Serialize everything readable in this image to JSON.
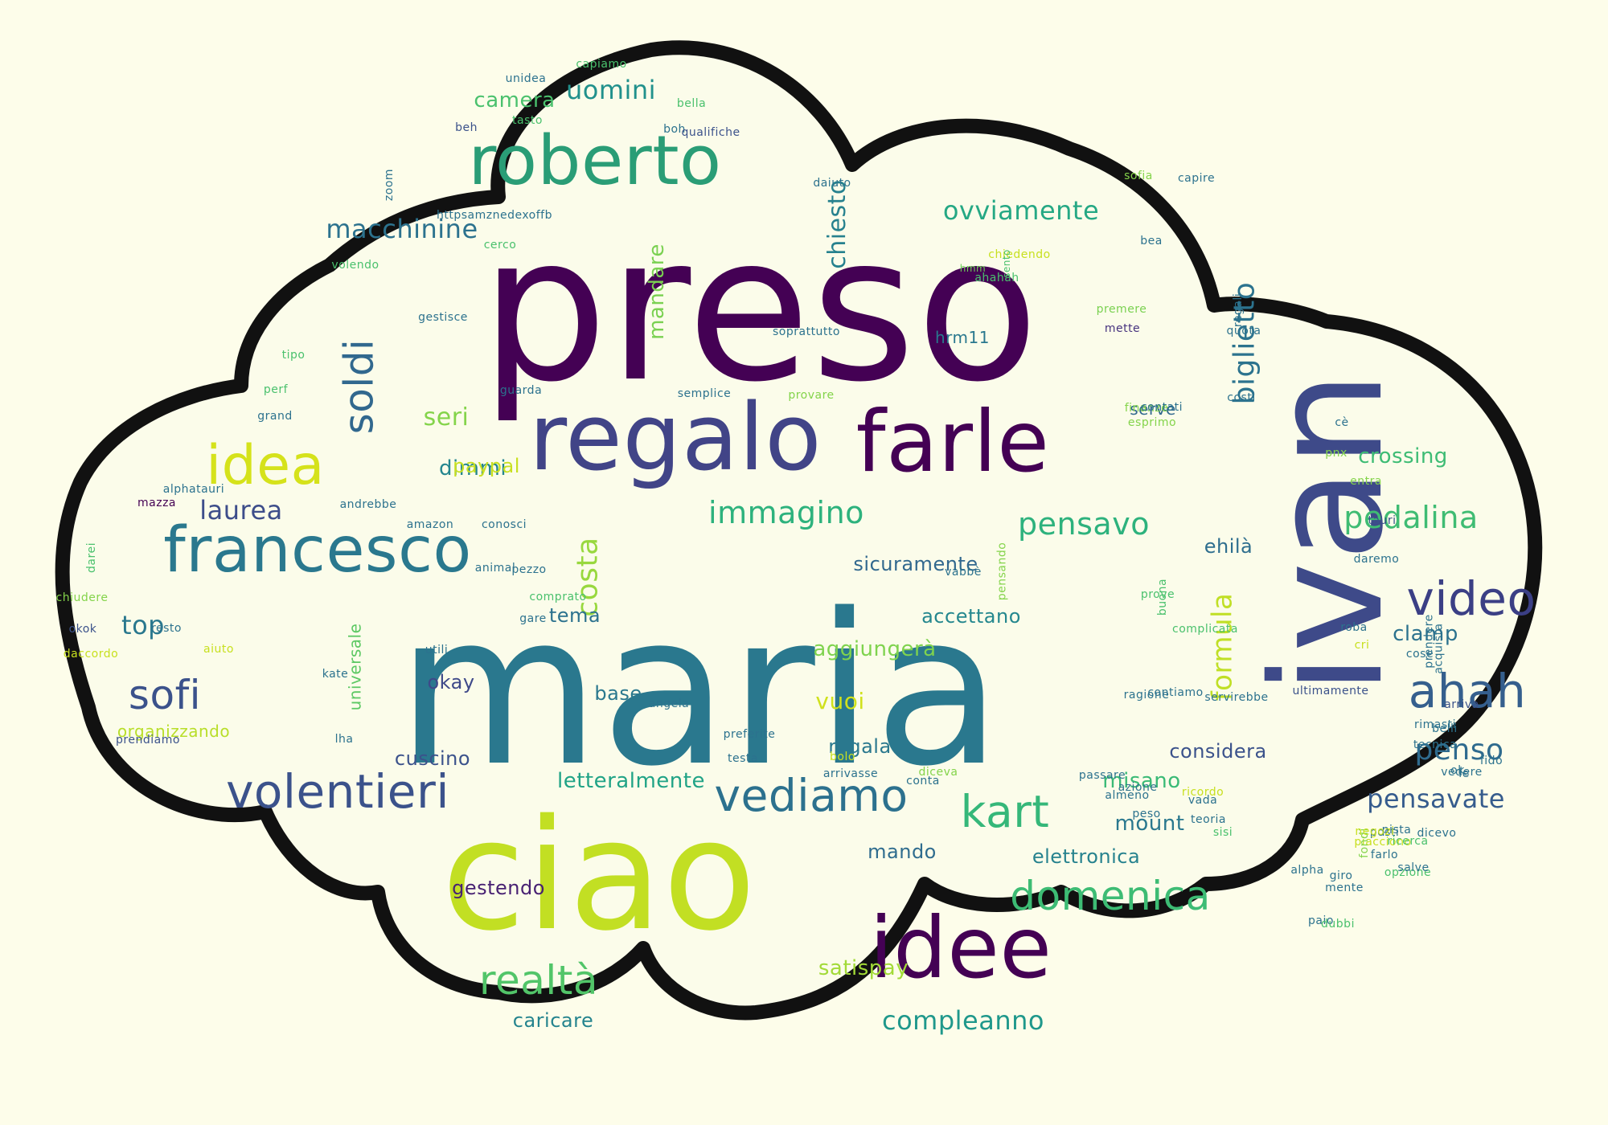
{
  "colors": {
    "background": "#fdfdea",
    "outline": "#111111",
    "cloud_fill": "#fbfcea",
    "palette": [
      "#440154",
      "#3b528b",
      "#21918c",
      "#5ec962",
      "#c7e020"
    ]
  },
  "words": [
    {
      "t": "preso",
      "c": "#440154",
      "v": false
    },
    {
      "t": "maria",
      "c": "#2a788e",
      "v": false
    },
    {
      "t": "ciao",
      "c": "#c2df23",
      "v": false
    },
    {
      "t": "ivan",
      "c": "#3e4a89",
      "v": true
    },
    {
      "t": "regalo",
      "c": "#414487",
      "v": false
    },
    {
      "t": "farle",
      "c": "#440154",
      "v": false
    },
    {
      "t": "idee",
      "c": "#440154",
      "v": false
    },
    {
      "t": "roberto",
      "c": "#2a9d76",
      "v": false
    },
    {
      "t": "francesco",
      "c": "#2a788e",
      "v": false
    },
    {
      "t": "idea",
      "c": "#d5e21a",
      "v": false
    },
    {
      "t": "video",
      "c": "#3b3f85",
      "v": false
    },
    {
      "t": "ahah",
      "c": "#355f8d",
      "v": false
    },
    {
      "t": "volentieri",
      "c": "#3b528b",
      "v": false
    },
    {
      "t": "vediamo",
      "c": "#2c718e",
      "v": false
    },
    {
      "t": "kart",
      "c": "#35b779",
      "v": false
    },
    {
      "t": "realtà",
      "c": "#52c569",
      "v": false
    },
    {
      "t": "domenica",
      "c": "#3dbc74",
      "v": false
    },
    {
      "t": "sofi",
      "c": "#3b528b",
      "v": false
    },
    {
      "t": "soldi",
      "c": "#31688e",
      "v": true
    },
    {
      "t": "ovviamente",
      "c": "#25a884",
      "v": false
    },
    {
      "t": "macchinine",
      "c": "#2c728e",
      "v": false
    },
    {
      "t": "uomini",
      "c": "#21918c",
      "v": false
    },
    {
      "t": "immagino",
      "c": "#2db27d",
      "v": false
    },
    {
      "t": "pensavo",
      "c": "#2db27d",
      "v": false
    },
    {
      "t": "pedalina",
      "c": "#3fbc73",
      "v": false
    },
    {
      "t": "biglietto",
      "c": "#2c738e",
      "v": true
    },
    {
      "t": "costa",
      "c": "#98d83e",
      "v": true
    },
    {
      "t": "formula",
      "c": "#c0df25",
      "v": true
    },
    {
      "t": "penso",
      "c": "#2f6b8e",
      "v": false
    },
    {
      "t": "misano",
      "c": "#3aba76",
      "v": false
    },
    {
      "t": "compleanno",
      "c": "#1f988b",
      "v": false
    },
    {
      "t": "laurea",
      "c": "#3d4d8a",
      "v": false
    },
    {
      "t": "top",
      "c": "#2a788e",
      "v": false
    },
    {
      "t": "seri",
      "c": "#84d44b",
      "v": false
    },
    {
      "t": "dimmi",
      "c": "#24868e",
      "v": false
    },
    {
      "t": "camera",
      "c": "#4ac16d",
      "v": false
    },
    {
      "t": "chiesto",
      "c": "#26818e",
      "v": true
    },
    {
      "t": "mandare",
      "c": "#7ad151",
      "v": true
    },
    {
      "t": "sicuramente",
      "c": "#31688e",
      "v": false
    },
    {
      "t": "ehilà",
      "c": "#2e6e8e",
      "v": false
    },
    {
      "t": "crossing",
      "c": "#3dbc74",
      "v": false
    },
    {
      "t": "clamp",
      "c": "#2c728e",
      "v": false
    },
    {
      "t": "pensavate",
      "c": "#365c8d",
      "v": false
    },
    {
      "t": "vuoi",
      "c": "#d0e11c",
      "v": false
    },
    {
      "t": "aggiungerà",
      "c": "#7fd34e",
      "v": false
    },
    {
      "t": "accettano",
      "c": "#24878e",
      "v": false
    },
    {
      "t": "regalato",
      "c": "#2a788e",
      "v": false
    },
    {
      "t": "considera",
      "c": "#3b528b",
      "v": false
    },
    {
      "t": "mount",
      "c": "#2a788e",
      "v": false
    },
    {
      "t": "elettronica",
      "c": "#26828e",
      "v": false
    },
    {
      "t": "mando",
      "c": "#2f6c8e",
      "v": false
    },
    {
      "t": "letteralmente",
      "c": "#20a386",
      "v": false
    },
    {
      "t": "gestendo",
      "c": "#482173",
      "v": false
    },
    {
      "t": "caricare",
      "c": "#25848e",
      "v": false
    },
    {
      "t": "satispay",
      "c": "#a2da37",
      "v": false
    },
    {
      "t": "universale",
      "c": "#5cc863",
      "v": true
    },
    {
      "t": "organizzando",
      "c": "#b8de29",
      "v": false
    },
    {
      "t": "cuscino",
      "c": "#3b528b",
      "v": false
    },
    {
      "t": "okay",
      "c": "#3e4989",
      "v": false
    },
    {
      "t": "base",
      "c": "#2a788e",
      "v": false
    },
    {
      "t": "tema",
      "c": "#2c728e",
      "v": false
    },
    {
      "t": "paypal",
      "c": "#c8e020",
      "v": false
    },
    {
      "t": "costi",
      "c": "#2c728e",
      "v": false
    },
    {
      "t": "serve",
      "c": "#31688e",
      "v": false
    },
    {
      "t": "hrm11",
      "c": "#2a788e",
      "v": false
    },
    {
      "t": "gestisce",
      "c": "#2c728e",
      "v": false
    },
    {
      "t": "soprattutto",
      "c": "#2c728e",
      "v": false
    },
    {
      "t": "premere",
      "c": "#7ad151",
      "v": false
    },
    {
      "t": "mette",
      "c": "#46327e",
      "v": false
    },
    {
      "t": "quota",
      "c": "#2c728e",
      "v": false
    },
    {
      "t": "regali",
      "c": "#2c728e",
      "v": true
    },
    {
      "t": "ahahah",
      "c": "#4ac16d",
      "v": false
    },
    {
      "t": "chiedendo",
      "c": "#c8e020",
      "v": false
    },
    {
      "t": "hmm",
      "c": "#6ece58",
      "v": false
    },
    {
      "t": "sento",
      "c": "#4ac16d",
      "v": true
    },
    {
      "t": "bea",
      "c": "#2c728e",
      "v": false
    },
    {
      "t": "capire",
      "c": "#2c728e",
      "v": false
    },
    {
      "t": "sofia",
      "c": "#84d44b",
      "v": false
    },
    {
      "t": "daiuto",
      "c": "#2c728e",
      "v": false
    },
    {
      "t": "cerco",
      "c": "#4ac16d",
      "v": false
    },
    {
      "t": "volendo",
      "c": "#4ac16d",
      "v": false
    },
    {
      "t": "zoom",
      "c": "#2c728e",
      "v": true
    },
    {
      "t": "httpsamznedexoffb",
      "c": "#2c728e",
      "v": false
    },
    {
      "t": "beh",
      "c": "#3b528b",
      "v": false
    },
    {
      "t": "tasto",
      "c": "#4ac16d",
      "v": false
    },
    {
      "t": "boh",
      "c": "#2c728e",
      "v": false
    },
    {
      "t": "qualifiche",
      "c": "#3b528b",
      "v": false
    },
    {
      "t": "bella",
      "c": "#4ac16d",
      "v": false
    },
    {
      "t": "unidea",
      "c": "#2c728e",
      "v": false
    },
    {
      "t": "capiamo",
      "c": "#4ac16d",
      "v": false
    },
    {
      "t": "tipo",
      "c": "#4ac16d",
      "v": false
    },
    {
      "t": "perf",
      "c": "#4ac16d",
      "v": false
    },
    {
      "t": "grand",
      "c": "#2c728e",
      "v": false
    },
    {
      "t": "guarda",
      "c": "#2c728e",
      "v": false
    },
    {
      "t": "semplice",
      "c": "#2c728e",
      "v": false
    },
    {
      "t": "provare",
      "c": "#84d44b",
      "v": false
    },
    {
      "t": "finanze",
      "c": "#84d44b",
      "v": false
    },
    {
      "t": "contati",
      "c": "#2c728e",
      "v": false
    },
    {
      "t": "esprimo",
      "c": "#84d44b",
      "v": false
    },
    {
      "t": "cè",
      "c": "#2c728e",
      "v": false
    },
    {
      "t": "pnx",
      "c": "#84d44b",
      "v": false
    },
    {
      "t": "entra",
      "c": "#84d44b",
      "v": false
    },
    {
      "t": "daremo",
      "c": "#2c728e",
      "v": false
    },
    {
      "t": "tauri",
      "c": "#3b528b",
      "v": false
    },
    {
      "t": "alphatauri",
      "c": "#2c728e",
      "v": false
    },
    {
      "t": "mazza",
      "c": "#440154",
      "v": false
    },
    {
      "t": "andrebbe",
      "c": "#2c728e",
      "v": false
    },
    {
      "t": "amazon",
      "c": "#2c728e",
      "v": false
    },
    {
      "t": "conosci",
      "c": "#2c728e",
      "v": false
    },
    {
      "t": "darei",
      "c": "#4ac16d",
      "v": true
    },
    {
      "t": "chiudere",
      "c": "#84d44b",
      "v": false
    },
    {
      "t": "animal",
      "c": "#2c728e",
      "v": false
    },
    {
      "t": "pezzo",
      "c": "#2c728e",
      "v": false
    },
    {
      "t": "comprato",
      "c": "#4ac16d",
      "v": false
    },
    {
      "t": "gare",
      "c": "#2c728e",
      "v": false
    },
    {
      "t": "okok",
      "c": "#3b528b",
      "v": false
    },
    {
      "t": "resto",
      "c": "#2c728e",
      "v": false
    },
    {
      "t": "daccordo",
      "c": "#c8e020",
      "v": false
    },
    {
      "t": "aiuto",
      "c": "#c8e020",
      "v": false
    },
    {
      "t": "utili",
      "c": "#2c728e",
      "v": false
    },
    {
      "t": "kate",
      "c": "#2c728e",
      "v": false
    },
    {
      "t": "vabbè",
      "c": "#2c728e",
      "v": false
    },
    {
      "t": "pensando",
      "c": "#84d44b",
      "v": true
    },
    {
      "t": "prove",
      "c": "#4ac16d",
      "v": false
    },
    {
      "t": "buona",
      "c": "#4ac16d",
      "v": true
    },
    {
      "t": "ragione",
      "c": "#2c728e",
      "v": false
    },
    {
      "t": "contiamo",
      "c": "#2c728e",
      "v": false
    },
    {
      "t": "roba",
      "c": "#2c728e",
      "v": false
    },
    {
      "t": "cri",
      "c": "#c8e020",
      "v": false
    },
    {
      "t": "prendere",
      "c": "#2c728e",
      "v": true
    },
    {
      "t": "acquista",
      "c": "#2c728e",
      "v": true
    },
    {
      "t": "tecnica",
      "c": "#2c728e",
      "v": false
    },
    {
      "t": "rimasti",
      "c": "#2c728e",
      "v": false
    },
    {
      "t": "arriva",
      "c": "#3b528b",
      "v": false
    },
    {
      "t": "belli",
      "c": "#2c728e",
      "v": false
    },
    {
      "t": "cose",
      "c": "#2c728e",
      "v": false
    },
    {
      "t": "complicata",
      "c": "#4ac16d",
      "v": false
    },
    {
      "t": "servirebbe",
      "c": "#2c728e",
      "v": false
    },
    {
      "t": "ultimamente",
      "c": "#3b528b",
      "v": false
    },
    {
      "t": "ok",
      "c": "#2c728e",
      "v": false
    },
    {
      "t": "fido",
      "c": "#2c728e",
      "v": false
    },
    {
      "t": "prendiamo",
      "c": "#3b528b",
      "v": false
    },
    {
      "t": "lha",
      "c": "#2c728e",
      "v": false
    },
    {
      "t": "angela",
      "c": "#2c728e",
      "v": false
    },
    {
      "t": "preferite",
      "c": "#2c728e",
      "v": false
    },
    {
      "t": "testa",
      "c": "#2c728e",
      "v": false
    },
    {
      "t": "bolo",
      "c": "#c8e020",
      "v": false
    },
    {
      "t": "arrivasse",
      "c": "#2c728e",
      "v": false
    },
    {
      "t": "conta",
      "c": "#2c728e",
      "v": false
    },
    {
      "t": "diceva",
      "c": "#84d44b",
      "v": false
    },
    {
      "t": "almeno",
      "c": "#2c728e",
      "v": false
    },
    {
      "t": "ricordo",
      "c": "#c8e020",
      "v": false
    },
    {
      "t": "vada",
      "c": "#2c728e",
      "v": false
    },
    {
      "t": "teoria",
      "c": "#2c728e",
      "v": false
    },
    {
      "t": "azione",
      "c": "#2c728e",
      "v": false
    },
    {
      "t": "passare",
      "c": "#2c728e",
      "v": false
    },
    {
      "t": "peso",
      "c": "#2c728e",
      "v": false
    },
    {
      "t": "sisi",
      "c": "#4ac16d",
      "v": false
    },
    {
      "t": "paio",
      "c": "#2c728e",
      "v": false
    },
    {
      "t": "dubbi",
      "c": "#4ac16d",
      "v": false
    },
    {
      "t": "alpha",
      "c": "#2c728e",
      "v": false
    },
    {
      "t": "mente",
      "c": "#2c728e",
      "v": false
    },
    {
      "t": "piacciono",
      "c": "#c8e020",
      "v": false
    },
    {
      "t": "farlo",
      "c": "#2c728e",
      "v": false
    },
    {
      "t": "pista",
      "c": "#2c728e",
      "v": false
    },
    {
      "t": "ricerca",
      "c": "#4ac16d",
      "v": false
    },
    {
      "t": "opzione",
      "c": "#4ac16d",
      "v": false
    },
    {
      "t": "salve",
      "c": "#2c728e",
      "v": false
    },
    {
      "t": "fondi",
      "c": "#84d44b",
      "v": true
    },
    {
      "t": "giro",
      "c": "#2c728e",
      "v": false
    },
    {
      "t": "posti",
      "c": "#2c728e",
      "v": false
    },
    {
      "t": "negozi",
      "c": "#c8e020",
      "v": false
    },
    {
      "t": "dicevo",
      "c": "#2c728e",
      "v": false
    },
    {
      "t": "vedere",
      "c": "#2c728e",
      "v": false
    },
    {
      "t": "ie",
      "c": "#2c728e",
      "v": false
    }
  ]
}
